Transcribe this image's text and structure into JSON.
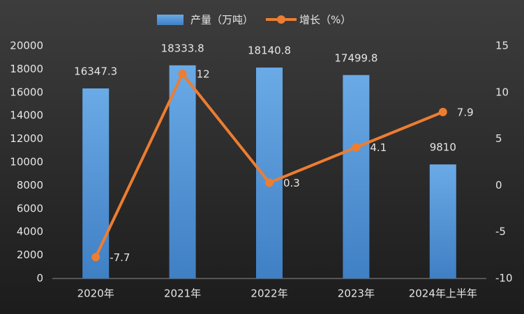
{
  "chart_data": {
    "type": "bar",
    "categories": [
      "2020年",
      "2021年",
      "2022年",
      "2023年",
      "2024年上半年"
    ],
    "series": [
      {
        "name": "产量（万吨）",
        "type": "bar",
        "color": "#5b9bd5",
        "axis": "y",
        "values": [
          16347.3,
          18333.8,
          18140.8,
          17499.8,
          9810
        ]
      },
      {
        "name": "增长（%）",
        "type": "line",
        "color": "#ed7d31",
        "axis": "y2",
        "values": [
          -7.7,
          12,
          0.3,
          4.1,
          7.9
        ]
      }
    ],
    "ylim": [
      0,
      20000
    ],
    "yticks": [
      0,
      2000,
      4000,
      6000,
      8000,
      10000,
      12000,
      14000,
      16000,
      18000,
      20000
    ],
    "y2lim": [
      -10,
      15
    ],
    "y2ticks": [
      -10,
      -5,
      0,
      5,
      10,
      15
    ],
    "grid": false,
    "legend": "top"
  }
}
